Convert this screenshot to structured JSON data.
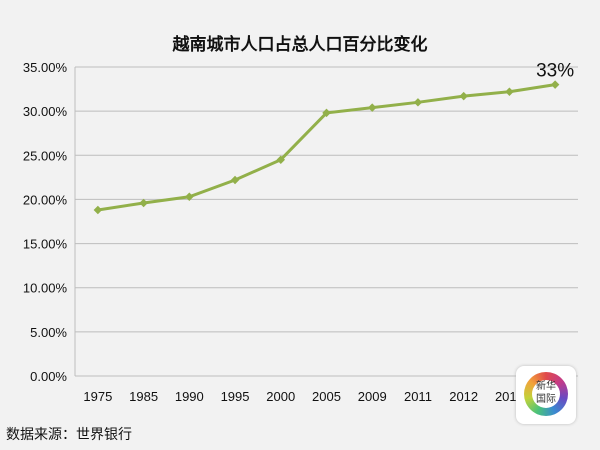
{
  "chart_data": {
    "type": "line",
    "title": "越南城市人口占总人口百分比变化",
    "categories": [
      "1975",
      "1985",
      "1990",
      "1995",
      "2000",
      "2005",
      "2009",
      "2011",
      "2012",
      "2013",
      ""
    ],
    "series": [
      {
        "values": [
          18.8,
          19.6,
          20.3,
          22.2,
          24.5,
          29.8,
          30.4,
          31.0,
          31.7,
          32.2,
          33.0
        ],
        "color": "#92b04a"
      }
    ],
    "ylim": [
      0,
      35
    ],
    "yticks": [
      "0.00%",
      "5.00%",
      "10.00%",
      "15.00%",
      "20.00%",
      "25.00%",
      "30.00%",
      "35.00%"
    ],
    "grid": true,
    "annotation": "33%"
  },
  "source": "数据来源：世界银行",
  "watermark": "新华国际"
}
